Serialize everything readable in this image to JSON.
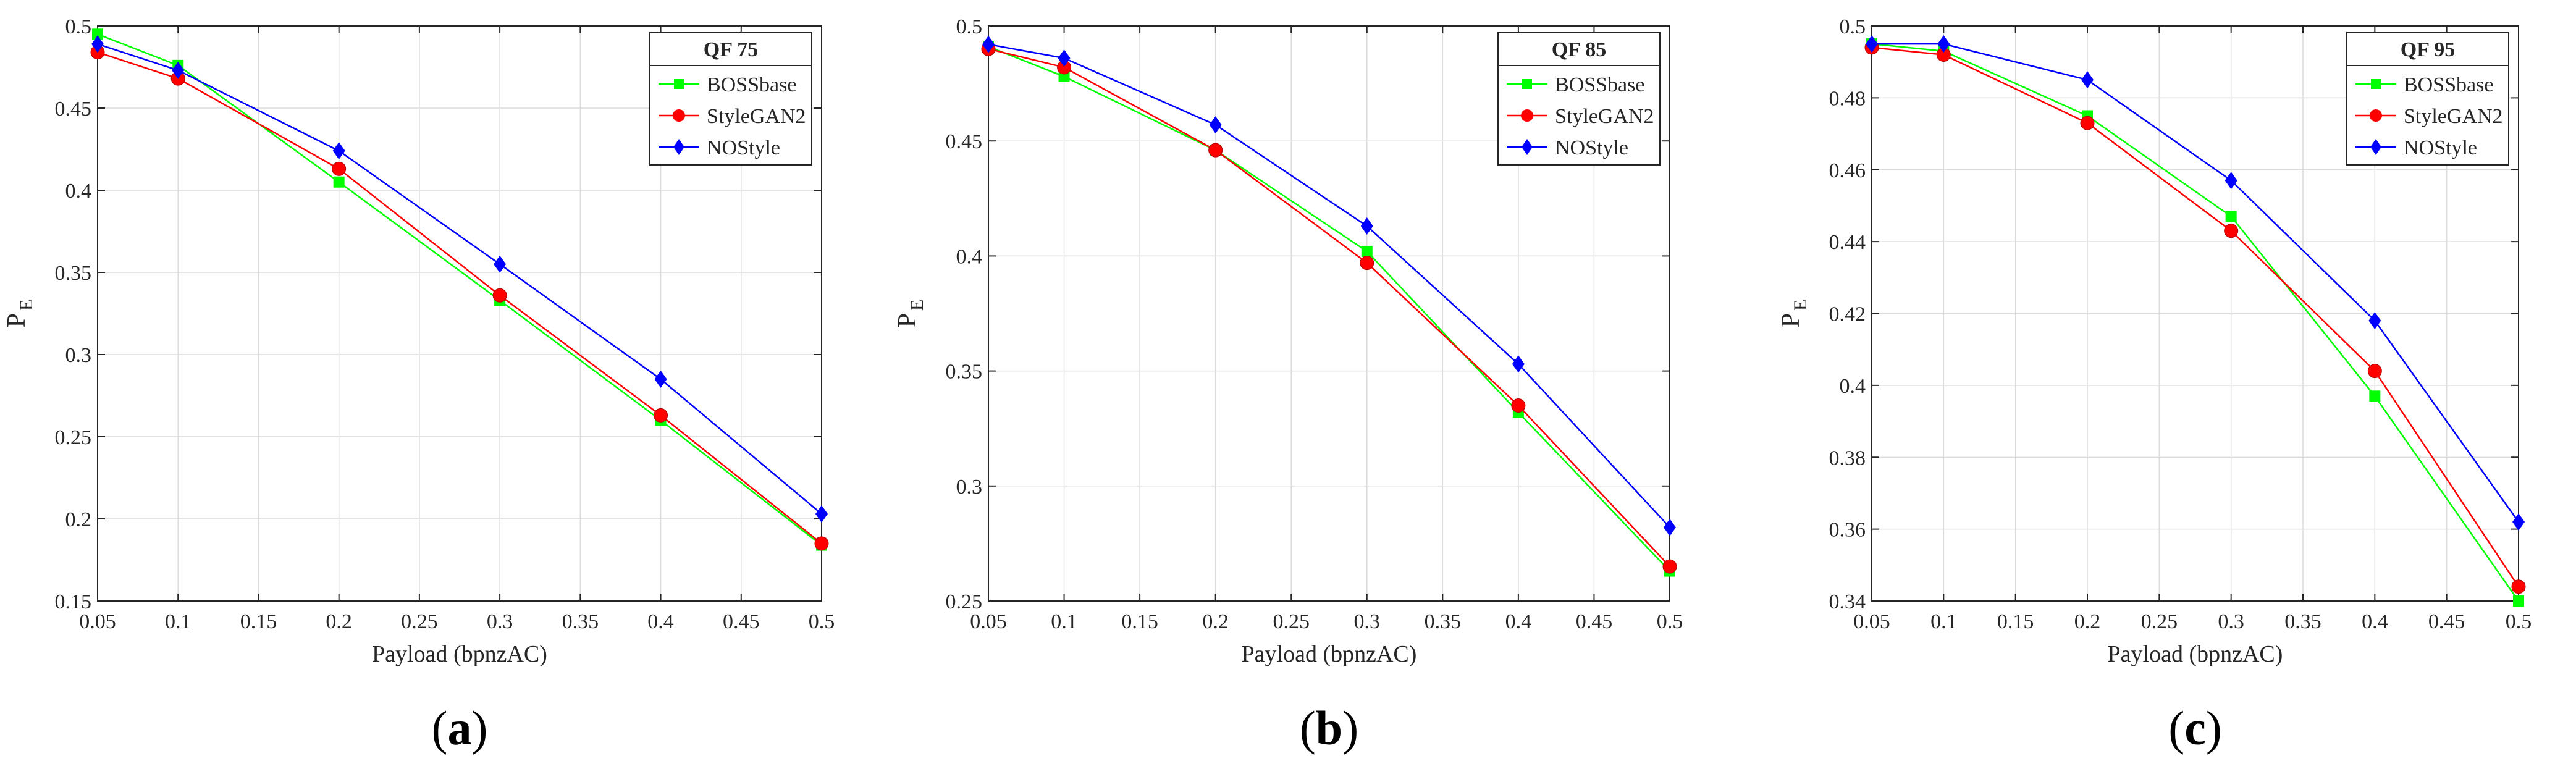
{
  "chart_data": [
    {
      "type": "line",
      "panel_label": {
        "open": "(",
        "letter": "a",
        "close": ")"
      },
      "legend_title": "QF 75",
      "xlabel": "Payload (bpnzAC)",
      "ylabel": "P",
      "ylabel_sub": "E",
      "xlim": [
        0.05,
        0.5
      ],
      "ylim": [
        0.15,
        0.5
      ],
      "xticks": [
        0.05,
        0.1,
        0.15,
        0.2,
        0.25,
        0.3,
        0.35,
        0.4,
        0.45,
        0.5
      ],
      "yticks": [
        0.15,
        0.2,
        0.25,
        0.3,
        0.35,
        0.4,
        0.45,
        0.5
      ],
      "grid": true,
      "legend_position": "top-right",
      "x": [
        0.05,
        0.1,
        0.2,
        0.3,
        0.4,
        0.5
      ],
      "series": [
        {
          "name": "BOSSbase",
          "color": "#00ff00",
          "marker": "square",
          "values": [
            0.495,
            0.476,
            0.405,
            0.333,
            0.26,
            0.184
          ]
        },
        {
          "name": "StyleGAN2",
          "color": "#ff0000",
          "marker": "circle",
          "values": [
            0.484,
            0.468,
            0.413,
            0.336,
            0.263,
            0.185
          ]
        },
        {
          "name": "NOStyle",
          "color": "#0000ff",
          "marker": "diamond",
          "values": [
            0.489,
            0.473,
            0.424,
            0.355,
            0.285,
            0.203
          ]
        }
      ]
    },
    {
      "type": "line",
      "panel_label": {
        "open": "(",
        "letter": "b",
        "close": ")"
      },
      "legend_title": "QF 85",
      "xlabel": "Payload (bpnzAC)",
      "ylabel": "P",
      "ylabel_sub": "E",
      "xlim": [
        0.05,
        0.5
      ],
      "ylim": [
        0.25,
        0.5
      ],
      "xticks": [
        0.05,
        0.1,
        0.15,
        0.2,
        0.25,
        0.3,
        0.35,
        0.4,
        0.45,
        0.5
      ],
      "yticks": [
        0.25,
        0.3,
        0.35,
        0.4,
        0.45,
        0.5
      ],
      "grid": true,
      "legend_position": "top-right",
      "x": [
        0.05,
        0.1,
        0.2,
        0.3,
        0.4,
        0.5
      ],
      "series": [
        {
          "name": "BOSSbase",
          "color": "#00ff00",
          "marker": "square",
          "values": [
            0.491,
            0.478,
            0.446,
            0.402,
            0.332,
            0.263
          ]
        },
        {
          "name": "StyleGAN2",
          "color": "#ff0000",
          "marker": "circle",
          "values": [
            0.49,
            0.482,
            0.446,
            0.397,
            0.335,
            0.265
          ]
        },
        {
          "name": "NOStyle",
          "color": "#0000ff",
          "marker": "diamond",
          "values": [
            0.492,
            0.486,
            0.457,
            0.413,
            0.353,
            0.282
          ]
        }
      ]
    },
    {
      "type": "line",
      "panel_label": {
        "open": "(",
        "letter": "c",
        "close": ")"
      },
      "legend_title": "QF 95",
      "xlabel": "Payload (bpnzAC)",
      "ylabel": "P",
      "ylabel_sub": "E",
      "xlim": [
        0.05,
        0.5
      ],
      "ylim": [
        0.34,
        0.5
      ],
      "xticks": [
        0.05,
        0.1,
        0.15,
        0.2,
        0.25,
        0.3,
        0.35,
        0.4,
        0.45,
        0.5
      ],
      "yticks": [
        0.34,
        0.36,
        0.38,
        0.4,
        0.42,
        0.44,
        0.46,
        0.48,
        0.5
      ],
      "grid": true,
      "legend_position": "top-right",
      "x": [
        0.05,
        0.1,
        0.2,
        0.3,
        0.4,
        0.5
      ],
      "series": [
        {
          "name": "BOSSbase",
          "color": "#00ff00",
          "marker": "square",
          "values": [
            0.495,
            0.493,
            0.475,
            0.447,
            0.397,
            0.34
          ]
        },
        {
          "name": "StyleGAN2",
          "color": "#ff0000",
          "marker": "circle",
          "values": [
            0.494,
            0.492,
            0.473,
            0.443,
            0.404,
            0.344
          ]
        },
        {
          "name": "NOStyle",
          "color": "#0000ff",
          "marker": "diamond",
          "values": [
            0.495,
            0.495,
            0.485,
            0.457,
            0.418,
            0.362
          ]
        }
      ]
    }
  ]
}
